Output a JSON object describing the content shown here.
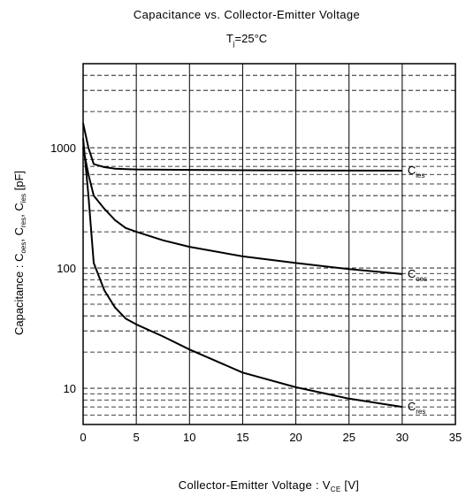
{
  "chart_data": {
    "type": "line",
    "title": "Capacitance  vs. Collector-Emitter Voltage",
    "subtitle": {
      "main": "T",
      "sub": "j",
      "rest": "=25°C"
    },
    "xlabel": {
      "main": "Collector-Emitter Voltage  :  V",
      "sub": "CE",
      "rest": "  [V]"
    },
    "ylabel": {
      "prefix": "Capacitance :  C",
      "sub1": "oes",
      "sep1": ", C",
      "sub2": "res",
      "sep2": ", C",
      "sub3": "ies",
      "suffix": "  [pF]"
    },
    "xlim": [
      0,
      35
    ],
    "ylim": [
      5,
      5000
    ],
    "yscale": "log",
    "grid": {
      "x_major": true,
      "y_dashed_minor": true
    },
    "x_ticks": [
      "0",
      "5",
      "10",
      "15",
      "20",
      "25",
      "30",
      "35"
    ],
    "x_tick_values": [
      0,
      5,
      10,
      15,
      20,
      25,
      30,
      35
    ],
    "y_ticks": [
      "10",
      "100",
      "1000"
    ],
    "y_tick_values": [
      10,
      100,
      1000
    ],
    "series": [
      {
        "name": "C",
        "sub": "ies",
        "x": [
          0,
          0.5,
          1,
          1.5,
          2,
          3,
          4,
          5,
          10,
          15,
          20,
          25,
          30
        ],
        "values": [
          1600,
          1000,
          730,
          710,
          690,
          670,
          665,
          660,
          655,
          650,
          648,
          646,
          645
        ]
      },
      {
        "name": "C",
        "sub": "oes",
        "x": [
          0,
          0.5,
          1,
          2,
          3,
          4,
          5,
          7.5,
          10,
          15,
          20,
          25,
          30
        ],
        "values": [
          1000,
          600,
          400,
          310,
          250,
          215,
          200,
          170,
          150,
          125,
          110,
          98,
          89
        ]
      },
      {
        "name": "C",
        "sub": "res",
        "x": [
          0,
          0.5,
          1,
          2,
          3,
          4,
          5,
          7.5,
          10,
          15,
          20,
          25,
          30
        ],
        "values": [
          1200,
          400,
          110,
          65,
          47,
          38,
          34,
          27,
          21,
          13.5,
          10.2,
          8.2,
          7
        ]
      }
    ]
  }
}
